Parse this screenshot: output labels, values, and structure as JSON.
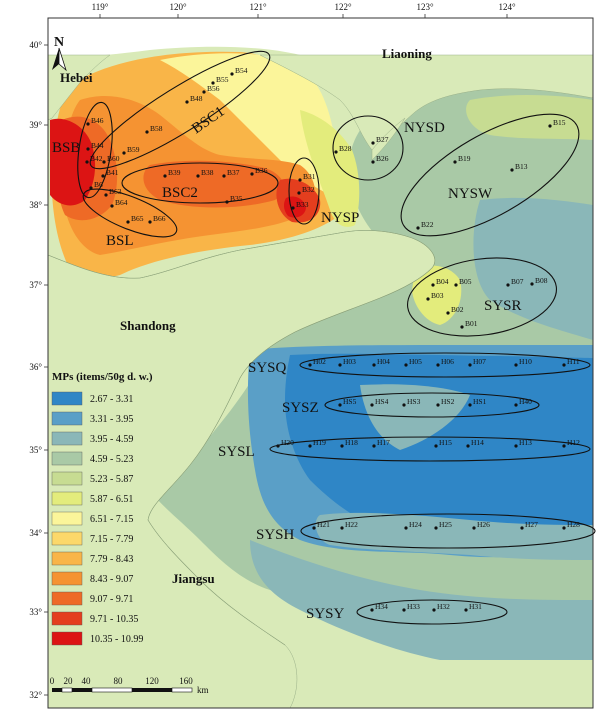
{
  "north_arrow": "N",
  "longitudes": [
    "119°",
    "120°",
    "121°",
    "122°",
    "123°",
    "124°"
  ],
  "latitudes": [
    "40°",
    "39°",
    "38°",
    "37°",
    "36°",
    "35°",
    "34°",
    "33°",
    "32°"
  ],
  "provinces": {
    "hebei": "Hebei",
    "liaoning": "Liaoning",
    "shandong": "Shandong",
    "jiangsu": "Jiangsu"
  },
  "regions": {
    "bsb": "BSB",
    "bsc1": "BSC1",
    "bsc2": "BSC2",
    "bsl": "BSL",
    "nysp": "NYSP",
    "nysd": "NYSD",
    "nysw": "NYSW",
    "sysr": "SYSR",
    "sysq": "SYSQ",
    "sysz": "SYSZ",
    "sysl": "SYSL",
    "sysh": "SYSH",
    "sysy": "SYSY"
  },
  "stations": {
    "B54": "B54",
    "B55": "B55",
    "B56": "B56",
    "B48": "B48",
    "B58": "B58",
    "B59": "B59",
    "B46": "B46",
    "B44": "B44",
    "B60": "B60",
    "B42": "B42",
    "B41": "B41",
    "B6": "B6",
    "B63": "B63",
    "B64": "B64",
    "B65": "B65",
    "B66": "B66",
    "B39": "B39",
    "B38": "B38",
    "B37": "B37",
    "B36": "B36",
    "B35": "B35",
    "B31": "B31",
    "B32": "B32",
    "B33": "B33",
    "B28": "B28",
    "B27": "B27",
    "B26": "B26",
    "B15": "B15",
    "B19": "B19",
    "B13": "B13",
    "B22": "B22",
    "B04": "B04",
    "B05": "B05",
    "B03": "B03",
    "B02": "B02",
    "B01": "B01",
    "B07": "B07",
    "B08": "B08",
    "H02": "H02",
    "H03": "H03",
    "H04": "H04",
    "H05": "H05",
    "H06": "H06",
    "H07": "H07",
    "H10": "H10",
    "H11": "H11",
    "HS5": "HS5",
    "HS4": "HS4",
    "HS3": "HS3",
    "HS2": "HS2",
    "HS1": "HS1",
    "H40": "H40",
    "H20": "H20",
    "H19": "H19",
    "H18": "H18",
    "H17": "H17",
    "H15": "H15",
    "H14": "H14",
    "H13": "H13",
    "H12": "H12",
    "H21": "H21",
    "H22": "H22",
    "H24": "H24",
    "H25": "H25",
    "H26": "H26",
    "H27": "H27",
    "H28": "H28",
    "H34": "H34",
    "H33": "H33",
    "H32": "H32",
    "H31": "H31"
  },
  "legend": {
    "title": "MPs (items/50g d. w.)",
    "classes": [
      {
        "label": "2.67 - 3.31",
        "color": "#2f86c6"
      },
      {
        "label": "3.31 - 3.95",
        "color": "#5a9fc7"
      },
      {
        "label": "3.95 - 4.59",
        "color": "#8ab7b8"
      },
      {
        "label": "4.59 - 5.23",
        "color": "#a9c9a6"
      },
      {
        "label": "5.23 - 5.87",
        "color": "#c7dc92"
      },
      {
        "label": "5.87 - 6.51",
        "color": "#e3ec7c"
      },
      {
        "label": "6.51 - 7.15",
        "color": "#fbf59a"
      },
      {
        "label": "7.15 - 7.79",
        "color": "#fcd86a"
      },
      {
        "label": "7.79 - 8.43",
        "color": "#f9b548"
      },
      {
        "label": "8.43 - 9.07",
        "color": "#f59332"
      },
      {
        "label": "9.07 - 9.71",
        "color": "#ee6a26"
      },
      {
        "label": "9.71 - 10.35",
        "color": "#e43e1e"
      },
      {
        "label": "10.35 - 10.99",
        "color": "#dc1414"
      }
    ]
  },
  "scale_bar": {
    "ticks": [
      "0",
      "20",
      "40",
      "80",
      "120",
      "160"
    ],
    "unit": "km"
  },
  "colors": {
    "land": "#d9eab8",
    "ocean_outside": "#ffffff"
  }
}
